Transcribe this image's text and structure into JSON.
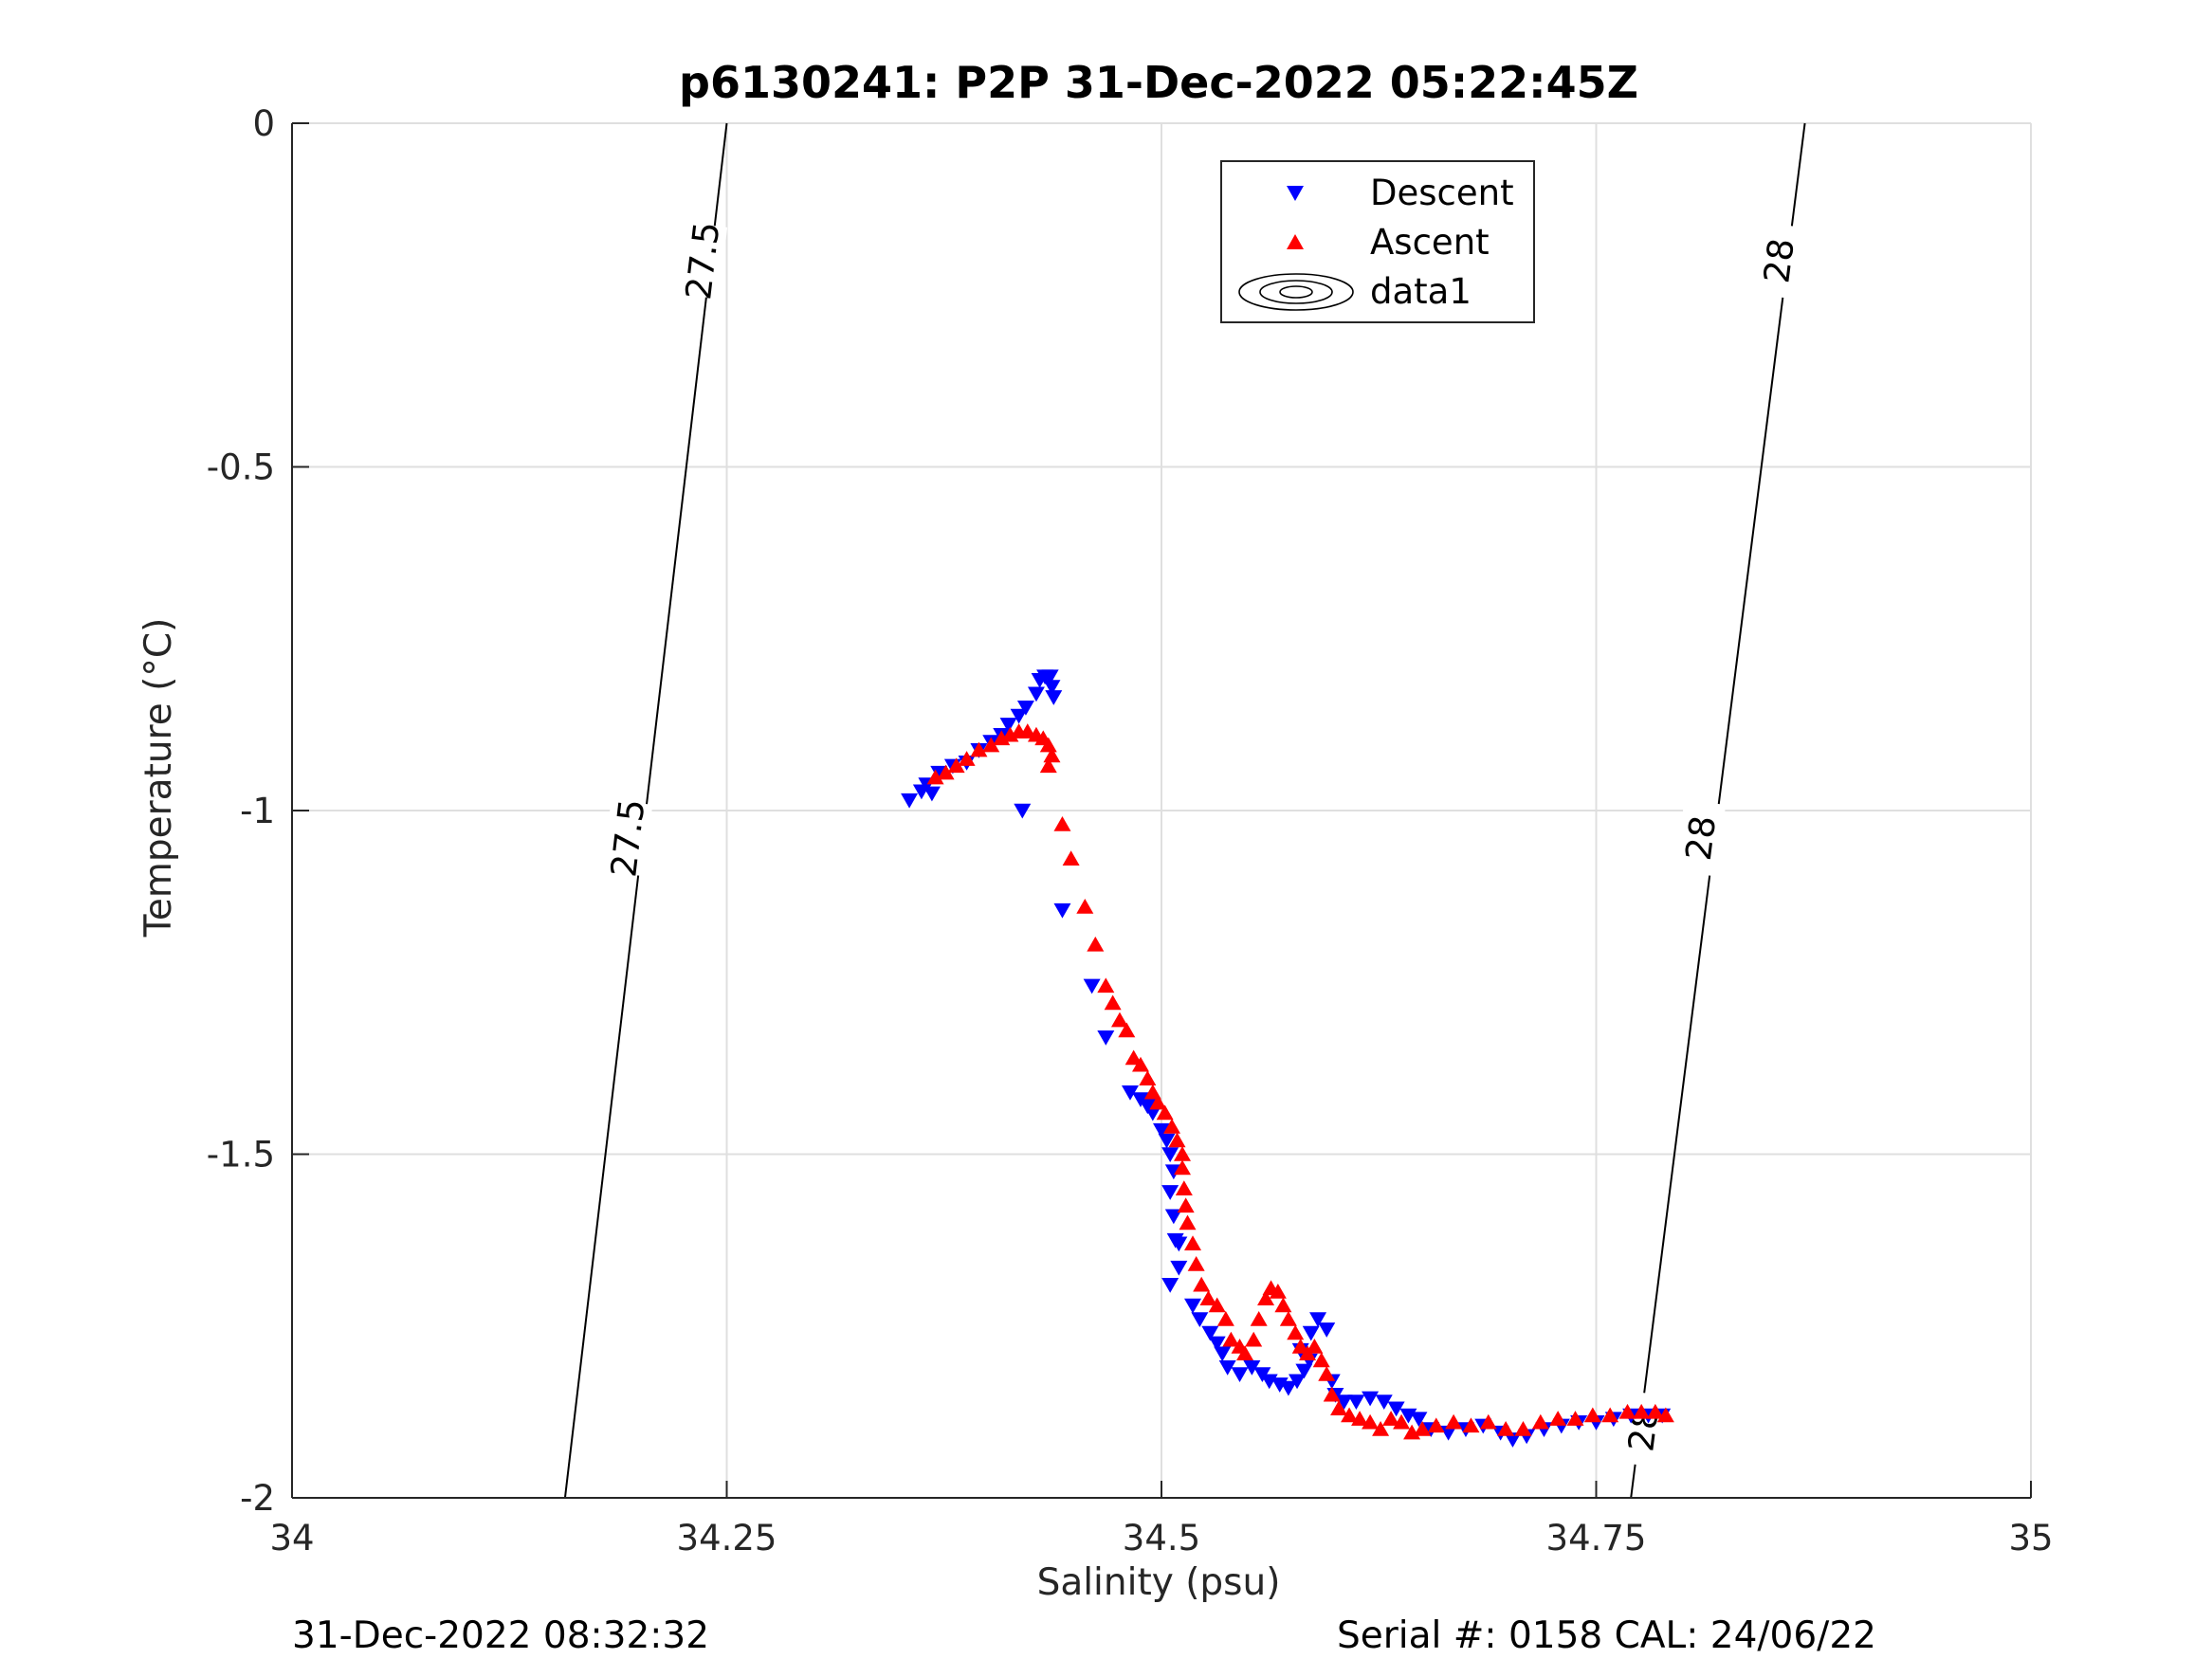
{
  "chart_data": {
    "type": "scatter",
    "title": "p6130241: P2P 31-Dec-2022 05:22:45Z",
    "xlabel": "Salinity (psu)",
    "ylabel": "Temperature (°C)",
    "xlim": [
      34,
      35
    ],
    "ylim": [
      -2,
      0
    ],
    "x_ticks": [
      34,
      34.25,
      34.5,
      34.75,
      35
    ],
    "x_tick_labels": [
      "34",
      "34.25",
      "34.5",
      "34.75",
      "35"
    ],
    "y_ticks": [
      0,
      -0.5,
      -1,
      -1.5,
      -2
    ],
    "y_tick_labels": [
      "0",
      "-0.5",
      "-1",
      "-1.5",
      "-2"
    ],
    "grid": true,
    "legend_position": "top-center",
    "colors": {
      "descent": "#0000ff",
      "ascent": "#ff0000",
      "contour": "#000000",
      "grid": "#dfdfdf"
    },
    "series": [
      {
        "name": "Descent",
        "marker": "triangle-down",
        "color": "#0000ff",
        "points": [
          [
            34.355,
            -0.985
          ],
          [
            34.362,
            -0.972
          ],
          [
            34.368,
            -0.975
          ],
          [
            34.365,
            -0.962
          ],
          [
            34.372,
            -0.945
          ],
          [
            34.38,
            -0.935
          ],
          [
            34.388,
            -0.93
          ],
          [
            34.395,
            -0.912
          ],
          [
            34.402,
            -0.9
          ],
          [
            34.408,
            -0.89
          ],
          [
            34.412,
            -0.875
          ],
          [
            34.418,
            -0.862
          ],
          [
            34.422,
            -0.85
          ],
          [
            34.428,
            -0.83
          ],
          [
            34.43,
            -0.81
          ],
          [
            34.433,
            -0.805
          ],
          [
            34.436,
            -0.805
          ],
          [
            34.437,
            -0.82
          ],
          [
            34.438,
            -0.835
          ],
          [
            34.42,
            -1.0
          ],
          [
            34.443,
            -1.145
          ],
          [
            34.46,
            -1.255
          ],
          [
            34.468,
            -1.33
          ],
          [
            34.482,
            -1.41
          ],
          [
            34.488,
            -1.42
          ],
          [
            34.492,
            -1.43
          ],
          [
            34.495,
            -1.44
          ],
          [
            34.5,
            -1.465
          ],
          [
            34.503,
            -1.48
          ],
          [
            34.505,
            -1.5
          ],
          [
            34.507,
            -1.525
          ],
          [
            34.505,
            -1.555
          ],
          [
            34.507,
            -1.59
          ],
          [
            34.508,
            -1.625
          ],
          [
            34.51,
            -1.63
          ],
          [
            34.51,
            -1.665
          ],
          [
            34.505,
            -1.69
          ],
          [
            34.518,
            -1.72
          ],
          [
            34.522,
            -1.74
          ],
          [
            34.528,
            -1.76
          ],
          [
            34.532,
            -1.775
          ],
          [
            34.535,
            -1.79
          ],
          [
            34.538,
            -1.81
          ],
          [
            34.545,
            -1.82
          ],
          [
            34.552,
            -1.81
          ],
          [
            34.558,
            -1.82
          ],
          [
            34.562,
            -1.83
          ],
          [
            34.568,
            -1.835
          ],
          [
            34.573,
            -1.84
          ],
          [
            34.578,
            -1.83
          ],
          [
            34.582,
            -1.815
          ],
          [
            34.585,
            -1.8
          ],
          [
            34.58,
            -1.785
          ],
          [
            34.586,
            -1.76
          ],
          [
            34.59,
            -1.74
          ],
          [
            34.595,
            -1.755
          ],
          [
            34.598,
            -1.83
          ],
          [
            34.6,
            -1.85
          ],
          [
            34.605,
            -1.86
          ],
          [
            34.612,
            -1.86
          ],
          [
            34.62,
            -1.855
          ],
          [
            34.628,
            -1.86
          ],
          [
            34.635,
            -1.87
          ],
          [
            34.642,
            -1.88
          ],
          [
            34.648,
            -1.885
          ],
          [
            34.655,
            -1.9
          ],
          [
            34.665,
            -1.905
          ],
          [
            34.675,
            -1.9
          ],
          [
            34.685,
            -1.895
          ],
          [
            34.695,
            -1.905
          ],
          [
            34.702,
            -1.915
          ],
          [
            34.71,
            -1.91
          ],
          [
            34.72,
            -1.9
          ],
          [
            34.73,
            -1.895
          ],
          [
            34.74,
            -1.89
          ],
          [
            34.75,
            -1.89
          ],
          [
            34.76,
            -1.885
          ],
          [
            34.77,
            -1.88
          ],
          [
            34.78,
            -1.88
          ],
          [
            34.788,
            -1.88
          ]
        ]
      },
      {
        "name": "Ascent",
        "marker": "triangle-up",
        "color": "#ff0000",
        "points": [
          [
            34.37,
            -0.952
          ],
          [
            34.376,
            -0.945
          ],
          [
            34.382,
            -0.935
          ],
          [
            34.388,
            -0.925
          ],
          [
            34.395,
            -0.912
          ],
          [
            34.402,
            -0.905
          ],
          [
            34.408,
            -0.895
          ],
          [
            34.413,
            -0.89
          ],
          [
            34.418,
            -0.885
          ],
          [
            34.423,
            -0.885
          ],
          [
            34.428,
            -0.89
          ],
          [
            34.432,
            -0.895
          ],
          [
            34.435,
            -0.905
          ],
          [
            34.437,
            -0.92
          ],
          [
            34.435,
            -0.935
          ],
          [
            34.443,
            -1.02
          ],
          [
            34.448,
            -1.07
          ],
          [
            34.456,
            -1.14
          ],
          [
            34.462,
            -1.195
          ],
          [
            34.468,
            -1.255
          ],
          [
            34.472,
            -1.28
          ],
          [
            34.476,
            -1.305
          ],
          [
            34.48,
            -1.32
          ],
          [
            34.484,
            -1.36
          ],
          [
            34.488,
            -1.37
          ],
          [
            34.492,
            -1.39
          ],
          [
            34.495,
            -1.41
          ],
          [
            34.498,
            -1.425
          ],
          [
            34.502,
            -1.44
          ],
          [
            34.506,
            -1.46
          ],
          [
            34.509,
            -1.48
          ],
          [
            34.512,
            -1.5
          ],
          [
            34.512,
            -1.52
          ],
          [
            34.513,
            -1.55
          ],
          [
            34.514,
            -1.575
          ],
          [
            34.515,
            -1.6
          ],
          [
            34.518,
            -1.63
          ],
          [
            34.52,
            -1.66
          ],
          [
            34.523,
            -1.69
          ],
          [
            34.527,
            -1.71
          ],
          [
            34.532,
            -1.72
          ],
          [
            34.537,
            -1.74
          ],
          [
            34.54,
            -1.77
          ],
          [
            34.545,
            -1.78
          ],
          [
            34.548,
            -1.79
          ],
          [
            34.553,
            -1.77
          ],
          [
            34.556,
            -1.74
          ],
          [
            34.56,
            -1.71
          ],
          [
            34.563,
            -1.695
          ],
          [
            34.567,
            -1.7
          ],
          [
            34.57,
            -1.72
          ],
          [
            34.573,
            -1.74
          ],
          [
            34.577,
            -1.76
          ],
          [
            34.58,
            -1.78
          ],
          [
            34.584,
            -1.79
          ],
          [
            34.588,
            -1.78
          ],
          [
            34.592,
            -1.8
          ],
          [
            34.595,
            -1.82
          ],
          [
            34.598,
            -1.85
          ],
          [
            34.602,
            -1.87
          ],
          [
            34.608,
            -1.88
          ],
          [
            34.614,
            -1.885
          ],
          [
            34.62,
            -1.89
          ],
          [
            34.626,
            -1.9
          ],
          [
            34.632,
            -1.885
          ],
          [
            34.638,
            -1.89
          ],
          [
            34.644,
            -1.905
          ],
          [
            34.65,
            -1.9
          ],
          [
            34.658,
            -1.895
          ],
          [
            34.668,
            -1.89
          ],
          [
            34.678,
            -1.895
          ],
          [
            34.688,
            -1.89
          ],
          [
            34.698,
            -1.9
          ],
          [
            34.708,
            -1.9
          ],
          [
            34.718,
            -1.89
          ],
          [
            34.728,
            -1.885
          ],
          [
            34.738,
            -1.885
          ],
          [
            34.748,
            -1.88
          ],
          [
            34.758,
            -1.88
          ],
          [
            34.768,
            -1.875
          ],
          [
            34.776,
            -1.875
          ],
          [
            34.784,
            -1.875
          ],
          [
            34.79,
            -1.88
          ]
        ]
      },
      {
        "name": "data1",
        "marker": "contour",
        "color": "#000000",
        "contours": [
          {
            "label": "27.5",
            "points": [
              [
                34.157,
                -2.0
              ],
              [
                34.25,
                0.0
              ]
            ]
          },
          {
            "label": "28",
            "points": [
              [
                34.77,
                -2.0
              ],
              [
                34.87,
                0.0
              ]
            ]
          }
        ],
        "labels": [
          {
            "text": "27.5",
            "x": 34.236,
            "y": -0.2
          },
          {
            "text": "27.5",
            "x": 34.193,
            "y": -1.04
          },
          {
            "text": "28",
            "x": 34.855,
            "y": -0.2
          },
          {
            "text": "28",
            "x": 34.81,
            "y": -1.04
          },
          {
            "text": "28",
            "x": 34.777,
            "y": -1.9
          }
        ]
      }
    ]
  },
  "footer": {
    "left": "31-Dec-2022 08:32:32",
    "right": "Serial #: 0158  CAL: 24/06/22"
  }
}
